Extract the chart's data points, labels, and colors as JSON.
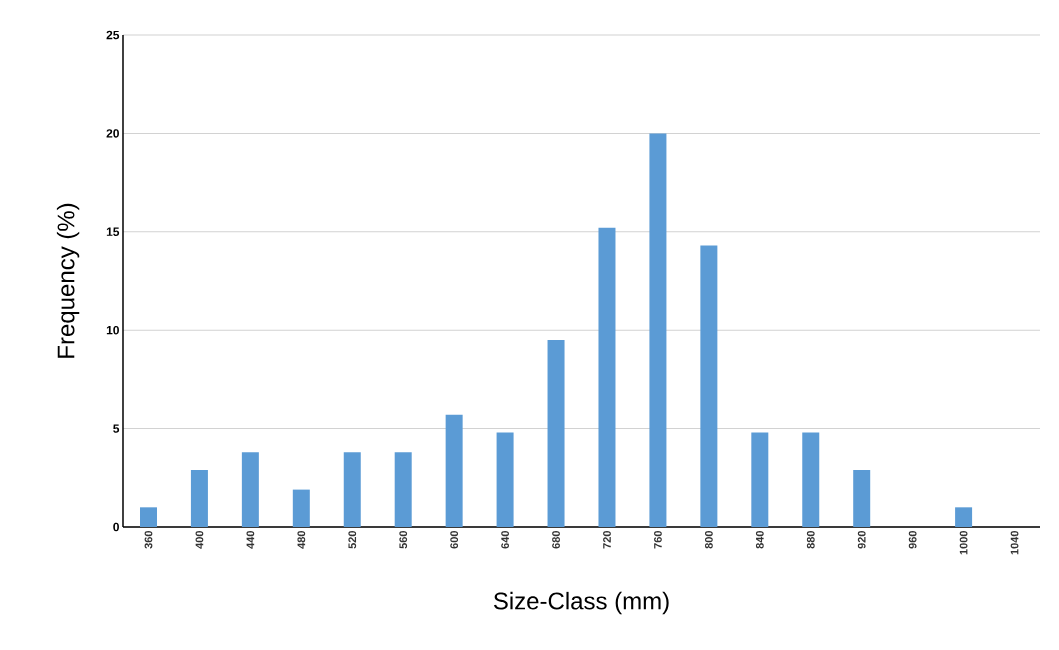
{
  "chart_data": {
    "type": "bar",
    "xlabel": "Size-Class (mm)",
    "ylabel": "Frequency (%)",
    "categories": [
      "360",
      "400",
      "440",
      "480",
      "520",
      "560",
      "600",
      "640",
      "680",
      "720",
      "760",
      "800",
      "840",
      "880",
      "920",
      "960",
      "1000",
      "1040"
    ],
    "values": [
      1.0,
      2.9,
      3.8,
      1.9,
      3.8,
      3.8,
      5.7,
      4.8,
      9.5,
      15.2,
      20.0,
      14.3,
      4.8,
      4.8,
      2.9,
      0,
      1.0,
      0
    ],
    "color": "#5b9bd5",
    "ylim": [
      0,
      25
    ],
    "yticks": [
      0,
      5,
      10,
      15,
      20,
      25
    ],
    "grid": "y"
  }
}
